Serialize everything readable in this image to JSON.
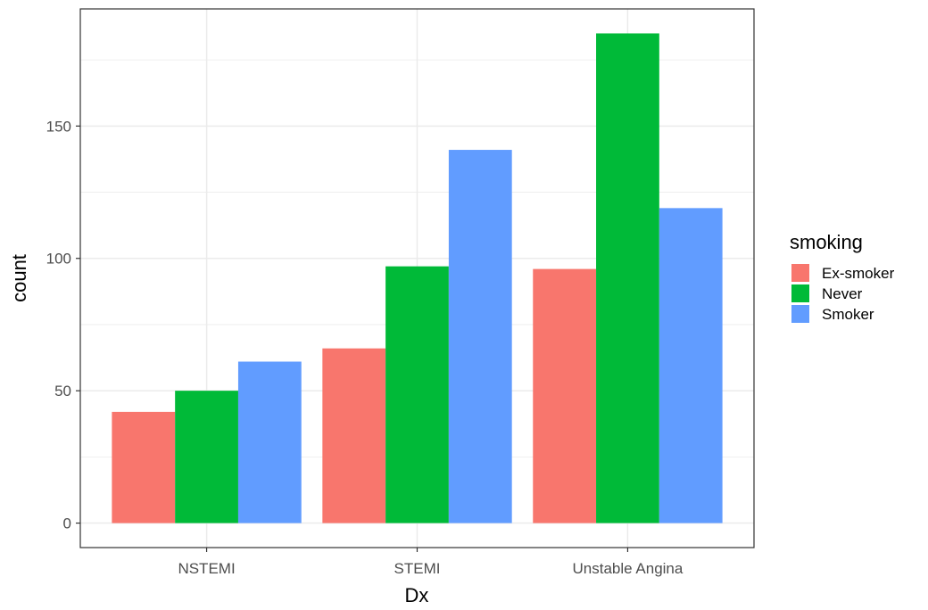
{
  "chart_data": {
    "type": "bar",
    "categories": [
      "NSTEMI",
      "STEMI",
      "Unstable Angina"
    ],
    "series": [
      {
        "name": "Ex-smoker",
        "color": "#F8766D",
        "values": [
          42,
          66,
          96
        ]
      },
      {
        "name": "Never",
        "color": "#00BA38",
        "values": [
          50,
          97,
          185
        ]
      },
      {
        "name": "Smoker",
        "color": "#619CFF",
        "values": [
          61,
          141,
          119
        ]
      }
    ],
    "xlabel": "Dx",
    "ylabel": "count",
    "ylim": [
      -9.25,
      194.25
    ],
    "yticks": [
      0,
      50,
      100,
      150
    ],
    "ytick_labels": [
      "0",
      "50",
      "100",
      "150"
    ],
    "grid": true,
    "legend": {
      "title": "smoking",
      "position": "right"
    }
  }
}
